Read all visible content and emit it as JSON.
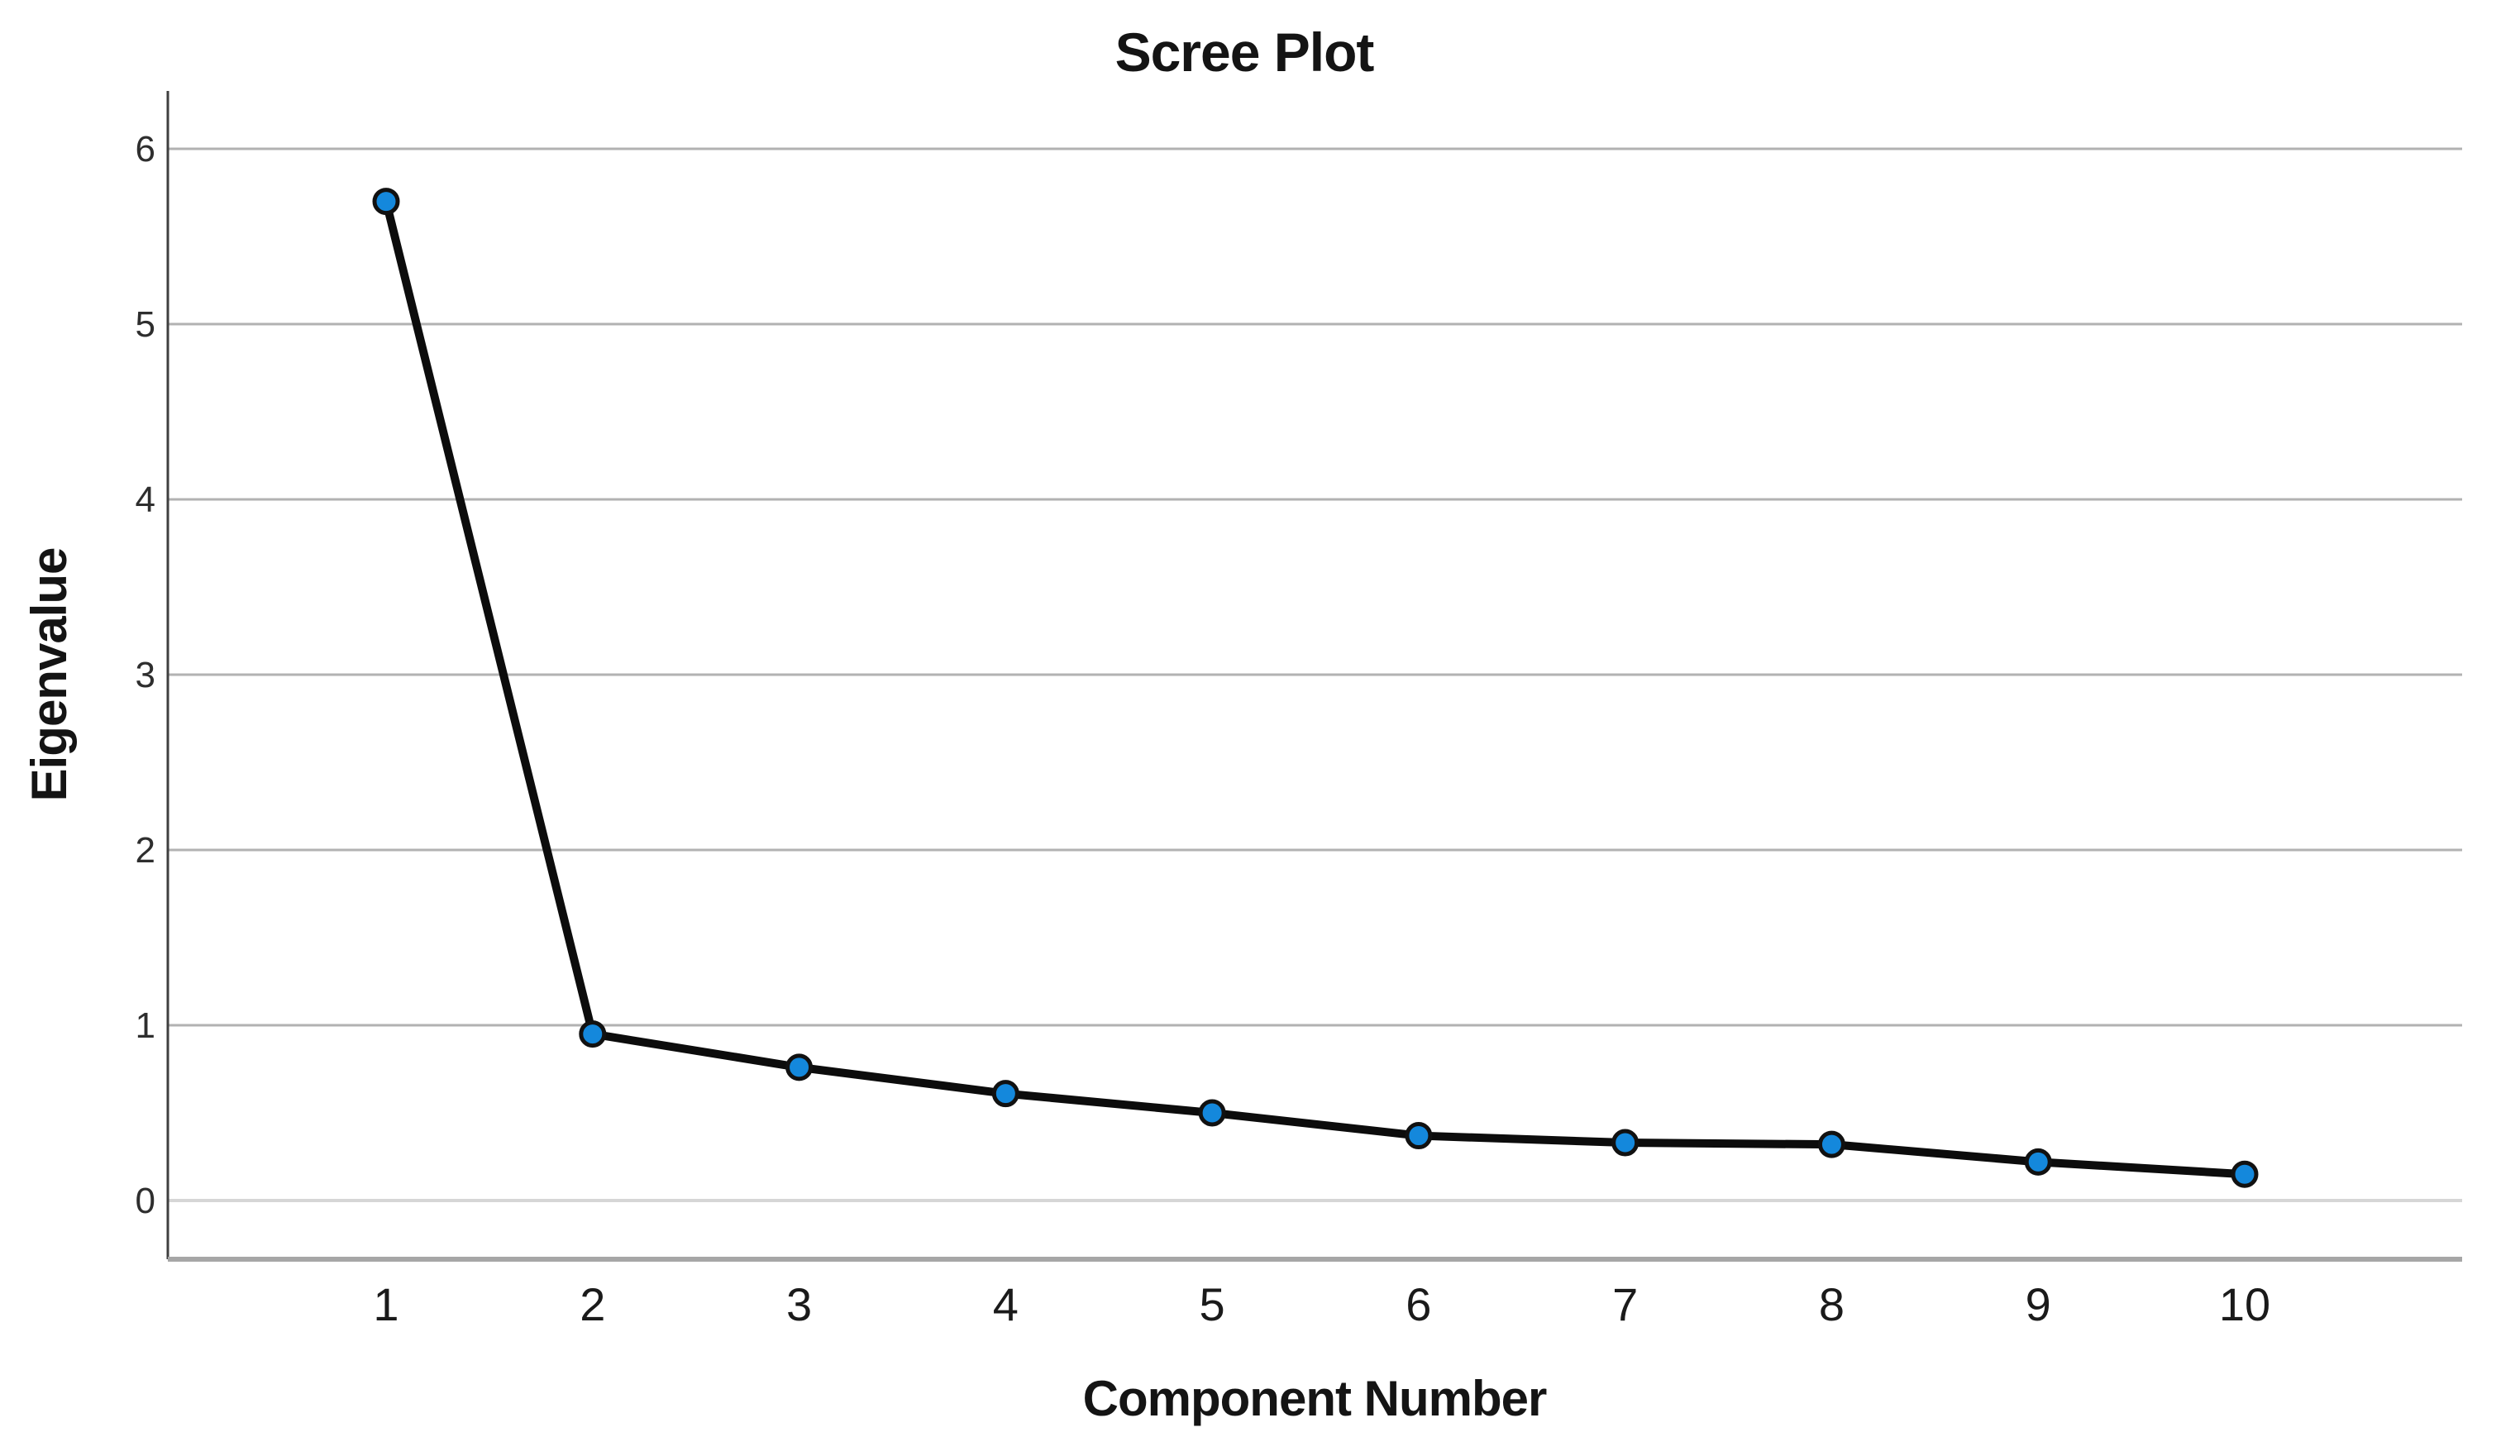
{
  "chart_data": {
    "type": "line",
    "title": "Scree Plot",
    "xlabel": "Component Number",
    "ylabel": "Eigenvalue",
    "x": [
      1,
      2,
      3,
      4,
      5,
      6,
      7,
      8,
      9,
      10
    ],
    "series": [
      {
        "name": "Eigenvalue",
        "values": [
          5.7,
          0.95,
          0.76,
          0.61,
          0.5,
          0.37,
          0.33,
          0.32,
          0.22,
          0.15
        ]
      }
    ],
    "x_tick_labels": [
      "1",
      "2",
      "3",
      "4",
      "5",
      "6",
      "7",
      "8",
      "9",
      "10"
    ],
    "y_ticks": [
      0,
      1,
      2,
      3,
      4,
      5,
      6
    ],
    "y_tick_labels": [
      "0",
      "1",
      "2",
      "3",
      "4",
      "5",
      "6"
    ],
    "ylim": [
      0,
      6
    ],
    "grid": "horizontal-only",
    "legend": "none",
    "colors": {
      "background": "#ffffff",
      "line": "#0c0c0c",
      "marker_fill": "#1488dc",
      "marker_edge": "#111111",
      "gridline": "#b2b2b2",
      "zero_gridline": "#d6d6d6",
      "bottom_axis_line": "#a6a6a6",
      "y_axis_line": "#3f3f3f",
      "title_text": "#141414",
      "tick_text": "#2e2e2e"
    }
  }
}
